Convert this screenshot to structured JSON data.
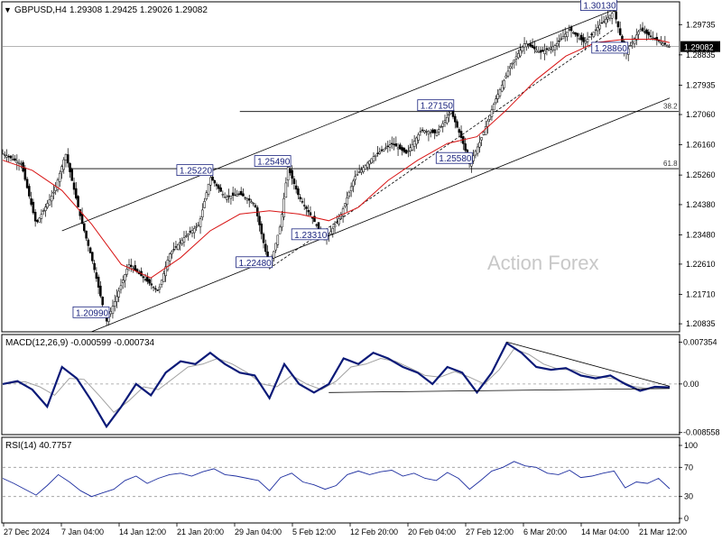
{
  "chart_data": {
    "type": "candlestick",
    "symbol_label": "GBPUSD,H4",
    "ohlc_label": "1.29308 1.29425 1.29026 1.29082",
    "watermark": "Action Forex",
    "current_price": "1.29082",
    "price_axis": {
      "min": 1.2065,
      "max": 1.3036,
      "ticks": [
        "1.29735",
        "1.28835",
        "1.27935",
        "1.27060",
        "1.26160",
        "1.25260",
        "1.24380",
        "1.23480",
        "1.22610",
        "1.21710",
        "1.20835"
      ]
    },
    "price_labels": [
      {
        "text": "1.30130",
        "price": 1.3013,
        "t": 165
      },
      {
        "text": "1.28860",
        "price": 1.2886,
        "t": 168
      },
      {
        "text": "1.27150",
        "price": 1.2715,
        "t": 121
      },
      {
        "text": "1.25580",
        "price": 1.2558,
        "t": 126
      },
      {
        "text": "1.25490",
        "price": 1.2549,
        "t": 77
      },
      {
        "text": "1.25220",
        "price": 1.2522,
        "t": 56
      },
      {
        "text": "1.23310",
        "price": 1.2331,
        "t": 87
      },
      {
        "text": "1.22480",
        "price": 1.2248,
        "t": 72
      },
      {
        "text": "1.20990",
        "price": 1.2099,
        "t": 28
      }
    ],
    "fib_levels": [
      {
        "label": "38.2",
        "price": 1.2715
      },
      {
        "label": "61.8",
        "price": 1.2545
      }
    ],
    "x_labels": [
      "27 Dec 2024",
      "7 Jan 04:00",
      "14 Jan 12:00",
      "21 Jan 20:00",
      "29 Jan 04:00",
      "5 Feb 12:00",
      "12 Feb 20:00",
      "20 Feb 04:00",
      "27 Feb 12:00",
      "6 Mar 20:00",
      "14 Mar 04:00",
      "21 Mar 12:00"
    ],
    "price_path": [
      [
        0,
        1.259
      ],
      [
        5,
        1.256
      ],
      [
        9,
        1.238
      ],
      [
        14,
        1.248
      ],
      [
        17,
        1.259
      ],
      [
        21,
        1.24
      ],
      [
        24,
        1.228
      ],
      [
        28,
        1.209
      ],
      [
        31,
        1.217
      ],
      [
        34,
        1.226
      ],
      [
        38,
        1.222
      ],
      [
        42,
        1.218
      ],
      [
        45,
        1.229
      ],
      [
        49,
        1.234
      ],
      [
        53,
        1.238
      ],
      [
        56,
        1.252
      ],
      [
        60,
        1.246
      ],
      [
        64,
        1.247
      ],
      [
        68,
        1.244
      ],
      [
        72,
        1.2248
      ],
      [
        75,
        1.238
      ],
      [
        77,
        1.2549
      ],
      [
        80,
        1.246
      ],
      [
        84,
        1.239
      ],
      [
        87,
        1.2331
      ],
      [
        91,
        1.24
      ],
      [
        95,
        1.252
      ],
      [
        100,
        1.258
      ],
      [
        105,
        1.262
      ],
      [
        109,
        1.259
      ],
      [
        113,
        1.266
      ],
      [
        117,
        1.265
      ],
      [
        121,
        1.2715
      ],
      [
        124,
        1.263
      ],
      [
        126,
        1.2558
      ],
      [
        129,
        1.263
      ],
      [
        133,
        1.275
      ],
      [
        137,
        1.285
      ],
      [
        141,
        1.292
      ],
      [
        145,
        1.289
      ],
      [
        149,
        1.291
      ],
      [
        153,
        1.296
      ],
      [
        157,
        1.292
      ],
      [
        161,
        1.297
      ],
      [
        165,
        1.3013
      ],
      [
        168,
        1.2886
      ],
      [
        172,
        1.296
      ],
      [
        176,
        1.293
      ],
      [
        180,
        1.2908
      ]
    ],
    "ma_path": [
      [
        0,
        1.257
      ],
      [
        8,
        1.254
      ],
      [
        16,
        1.248
      ],
      [
        24,
        1.238
      ],
      [
        32,
        1.226
      ],
      [
        40,
        1.222
      ],
      [
        48,
        1.228
      ],
      [
        56,
        1.236
      ],
      [
        64,
        1.241
      ],
      [
        72,
        1.242
      ],
      [
        80,
        1.241
      ],
      [
        88,
        1.239
      ],
      [
        96,
        1.243
      ],
      [
        104,
        1.251
      ],
      [
        112,
        1.257
      ],
      [
        120,
        1.262
      ],
      [
        128,
        1.264
      ],
      [
        136,
        1.272
      ],
      [
        144,
        1.281
      ],
      [
        152,
        1.288
      ],
      [
        160,
        1.292
      ],
      [
        168,
        1.293
      ],
      [
        176,
        1.293
      ],
      [
        180,
        1.292
      ]
    ],
    "channel": {
      "upper": [
        [
          16,
          1.236
        ],
        [
          165,
          1.3018
        ]
      ],
      "lower": [
        [
          24,
          1.206
        ],
        [
          180,
          1.2755
        ]
      ],
      "trend": [
        [
          72,
          1.2248
        ],
        [
          165,
          1.296
        ]
      ]
    },
    "macd": {
      "label": "MACD(12,26,9) -0.000599 -0.000734",
      "ticks": [
        "0.007354",
        "0.00",
        "-0.008558"
      ],
      "min": -0.0086,
      "max": 0.0076,
      "main": [
        [
          0,
          0.0
        ],
        [
          4,
          0.0005
        ],
        [
          8,
          -0.001
        ],
        [
          12,
          -0.004
        ],
        [
          16,
          0.003
        ],
        [
          20,
          0.001
        ],
        [
          24,
          -0.003
        ],
        [
          28,
          -0.0075
        ],
        [
          32,
          -0.004
        ],
        [
          36,
          0.0
        ],
        [
          40,
          -0.002
        ],
        [
          44,
          0.002
        ],
        [
          48,
          0.004
        ],
        [
          52,
          0.0035
        ],
        [
          56,
          0.0055
        ],
        [
          60,
          0.0035
        ],
        [
          64,
          0.002
        ],
        [
          68,
          0.0015
        ],
        [
          72,
          -0.0025
        ],
        [
          76,
          0.0035
        ],
        [
          80,
          0.0
        ],
        [
          84,
          -0.0015
        ],
        [
          88,
          0.0
        ],
        [
          92,
          0.0045
        ],
        [
          96,
          0.0035
        ],
        [
          100,
          0.0055
        ],
        [
          104,
          0.0045
        ],
        [
          108,
          0.003
        ],
        [
          112,
          0.002
        ],
        [
          116,
          0.0
        ],
        [
          120,
          0.003
        ],
        [
          124,
          0.002
        ],
        [
          128,
          -0.0015
        ],
        [
          132,
          0.002
        ],
        [
          136,
          0.0072
        ],
        [
          140,
          0.0055
        ],
        [
          144,
          0.003
        ],
        [
          148,
          0.0025
        ],
        [
          152,
          0.0028
        ],
        [
          156,
          0.0015
        ],
        [
          160,
          0.001
        ],
        [
          164,
          0.0015
        ],
        [
          168,
          0.0
        ],
        [
          172,
          -0.0012
        ],
        [
          176,
          -0.0005
        ],
        [
          180,
          -0.0006
        ]
      ],
      "signal": [
        [
          0,
          0.0
        ],
        [
          6,
          0.0004
        ],
        [
          10,
          -0.0005
        ],
        [
          14,
          -0.002
        ],
        [
          18,
          0.001
        ],
        [
          22,
          0.0008
        ],
        [
          26,
          -0.002
        ],
        [
          30,
          -0.005
        ],
        [
          34,
          -0.003
        ],
        [
          38,
          -0.0005
        ],
        [
          42,
          -0.001
        ],
        [
          46,
          0.001
        ],
        [
          50,
          0.003
        ],
        [
          54,
          0.0035
        ],
        [
          58,
          0.0045
        ],
        [
          62,
          0.0035
        ],
        [
          66,
          0.002
        ],
        [
          70,
          0.0
        ],
        [
          74,
          -0.0005
        ],
        [
          78,
          0.0015
        ],
        [
          82,
          0.0
        ],
        [
          86,
          -0.001
        ],
        [
          90,
          0.0005
        ],
        [
          94,
          0.003
        ],
        [
          98,
          0.0035
        ],
        [
          102,
          0.0045
        ],
        [
          106,
          0.004
        ],
        [
          110,
          0.0028
        ],
        [
          114,
          0.0015
        ],
        [
          118,
          0.0012
        ],
        [
          122,
          0.0022
        ],
        [
          126,
          0.0012
        ],
        [
          130,
          0.0
        ],
        [
          134,
          0.0025
        ],
        [
          138,
          0.0062
        ],
        [
          142,
          0.0052
        ],
        [
          146,
          0.0035
        ],
        [
          150,
          0.0026
        ],
        [
          154,
          0.0025
        ],
        [
          158,
          0.0016
        ],
        [
          162,
          0.0012
        ],
        [
          166,
          0.0008
        ],
        [
          170,
          -0.0004
        ],
        [
          174,
          -0.0008
        ],
        [
          178,
          -0.0006
        ],
        [
          180,
          -0.0007
        ]
      ],
      "trend_lines": [
        [
          [
            88,
            -0.0015
          ],
          [
            180,
            -0.0008
          ]
        ],
        [
          [
            136,
            0.0074
          ],
          [
            180,
            -0.0004
          ]
        ]
      ]
    },
    "rsi": {
      "label": "RSI(14) 40.7757",
      "ticks": [
        "100",
        "70",
        "30",
        "0"
      ],
      "levels": [
        70,
        30
      ],
      "path": [
        [
          0,
          55
        ],
        [
          3,
          48
        ],
        [
          6,
          40
        ],
        [
          9,
          32
        ],
        [
          12,
          45
        ],
        [
          15,
          60
        ],
        [
          18,
          50
        ],
        [
          21,
          38
        ],
        [
          24,
          30
        ],
        [
          27,
          35
        ],
        [
          30,
          40
        ],
        [
          33,
          52
        ],
        [
          36,
          58
        ],
        [
          39,
          48
        ],
        [
          42,
          55
        ],
        [
          45,
          60
        ],
        [
          48,
          62
        ],
        [
          51,
          58
        ],
        [
          54,
          64
        ],
        [
          57,
          68
        ],
        [
          60,
          60
        ],
        [
          63,
          58
        ],
        [
          66,
          55
        ],
        [
          69,
          52
        ],
        [
          72,
          38
        ],
        [
          75,
          56
        ],
        [
          78,
          62
        ],
        [
          81,
          50
        ],
        [
          84,
          46
        ],
        [
          87,
          40
        ],
        [
          90,
          45
        ],
        [
          93,
          60
        ],
        [
          96,
          65
        ],
        [
          99,
          60
        ],
        [
          102,
          64
        ],
        [
          105,
          66
        ],
        [
          108,
          58
        ],
        [
          111,
          62
        ],
        [
          114,
          55
        ],
        [
          117,
          52
        ],
        [
          120,
          63
        ],
        [
          123,
          55
        ],
        [
          126,
          40
        ],
        [
          129,
          52
        ],
        [
          132,
          65
        ],
        [
          135,
          70
        ],
        [
          138,
          78
        ],
        [
          141,
          72
        ],
        [
          144,
          70
        ],
        [
          147,
          62
        ],
        [
          150,
          60
        ],
        [
          153,
          66
        ],
        [
          156,
          56
        ],
        [
          159,
          58
        ],
        [
          162,
          62
        ],
        [
          165,
          65
        ],
        [
          168,
          42
        ],
        [
          171,
          50
        ],
        [
          174,
          48
        ],
        [
          177,
          55
        ],
        [
          180,
          40.8
        ]
      ]
    }
  }
}
